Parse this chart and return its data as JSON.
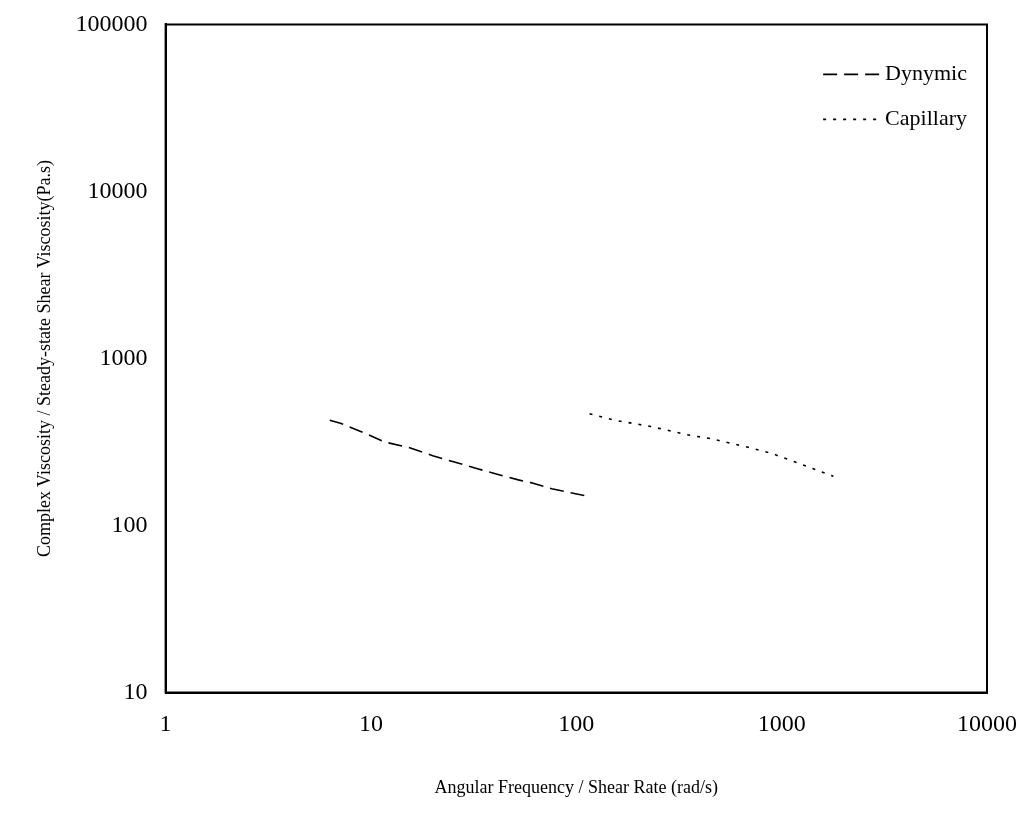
{
  "chart_data": {
    "type": "line",
    "xlabel": "Angular Frequency / Shear Rate (rad/s)",
    "ylabel": "Complex Viscosity / Steady-state Shear Viscosity(Pa.s)",
    "log": "xy",
    "xlim": [
      1,
      10000
    ],
    "xticks": [
      1,
      10,
      100,
      1000,
      10000
    ],
    "ylim": [
      10,
      100000
    ],
    "yticks": [
      10,
      100,
      1000,
      10000,
      100000
    ],
    "grid": false,
    "legend": "top right",
    "marker": "none",
    "series": [
      {
        "name": "Dynymic",
        "color": "#000000",
        "line_style": "dashed",
        "x": [
          6.3,
          7.1,
          9.2,
          11.7,
          15.2,
          20,
          25.5,
          33,
          41.6,
          52.8,
          61,
          76,
          110
        ],
        "values": [
          427,
          410,
          360,
          316,
          294,
          262,
          240,
          219,
          202,
          187,
          180,
          166,
          151
        ]
      },
      {
        "name": "Capillary",
        "color": "#000000",
        "line_style": "dotted",
        "x": [
          116,
          152,
          230,
          345,
          458,
          687,
          897,
          1315,
          1787
        ],
        "values": [
          467,
          428,
          392,
          350,
          330,
          294,
          270,
          227,
          197
        ]
      }
    ]
  }
}
